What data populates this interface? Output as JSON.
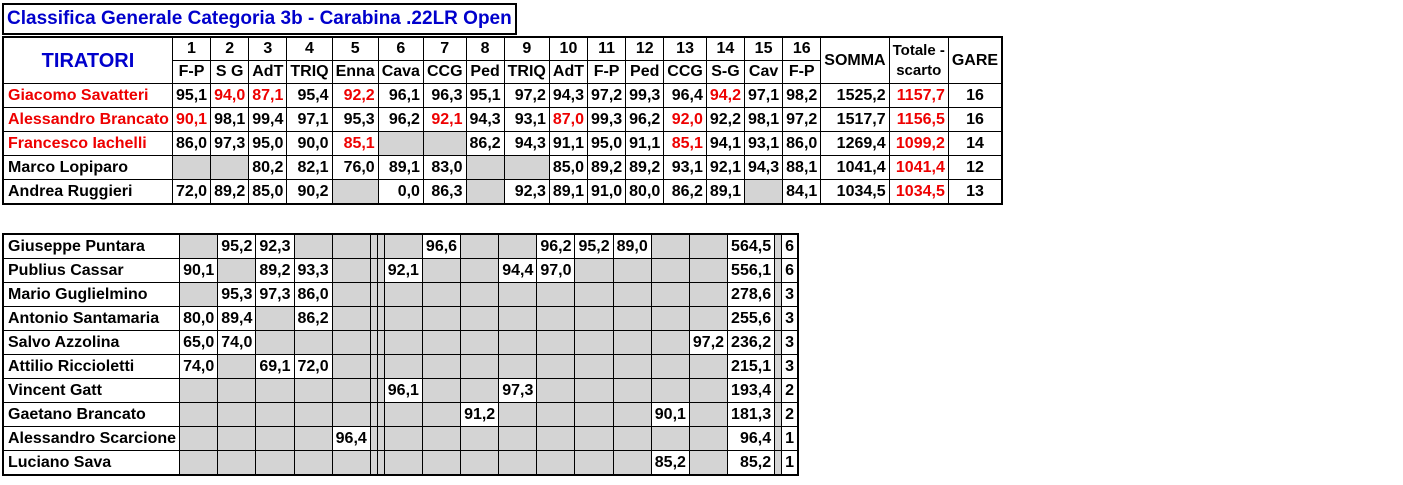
{
  "title": "Classifica Generale Categoria 3b - Carabina .22LR Open",
  "header": {
    "tiratori": "TIRATORI",
    "somma": "SOMMA",
    "totale_line1": "Totale -",
    "totale_line2": "scarto",
    "gare": "GARE",
    "numbers": [
      "1",
      "2",
      "3",
      "4",
      "5",
      "6",
      "7",
      "8",
      "9",
      "10",
      "11",
      "12",
      "13",
      "14",
      "15",
      "16"
    ],
    "codes": [
      "F-P",
      "S G",
      "AdT",
      "TRIQ",
      "Enna",
      "Cava",
      "CCG",
      "Ped",
      "TRIQ",
      "AdT",
      "F-P",
      "Ped",
      "CCG",
      "S-G",
      "Cav",
      "F-P"
    ]
  },
  "colors": {
    "title_blue": "#0000cc",
    "highlight_red": "#ee0000",
    "empty_grey": "#d4d4d4"
  },
  "top_rows": [
    {
      "name": "Giacomo Savatteri",
      "name_red": true,
      "scores": [
        "95,1",
        "94,0",
        "87,1",
        "95,4",
        "92,2",
        "96,1",
        "96,3",
        "95,1",
        "97,2",
        "94,3",
        "97,2",
        "99,3",
        "96,4",
        "94,2",
        "97,1",
        "98,2"
      ],
      "red": [
        false,
        true,
        true,
        false,
        true,
        false,
        false,
        false,
        false,
        false,
        false,
        false,
        false,
        true,
        false,
        false
      ],
      "somma": "1525,2",
      "totale": "1157,7",
      "gare": "16"
    },
    {
      "name": "Alessandro Brancato",
      "name_red": true,
      "scores": [
        "90,1",
        "98,1",
        "99,4",
        "97,1",
        "95,3",
        "96,2",
        "92,1",
        "94,3",
        "93,1",
        "87,0",
        "99,3",
        "96,2",
        "92,0",
        "92,2",
        "98,1",
        "97,2"
      ],
      "red": [
        true,
        false,
        false,
        false,
        false,
        false,
        true,
        false,
        false,
        true,
        false,
        false,
        true,
        false,
        false,
        false
      ],
      "somma": "1517,7",
      "totale": "1156,5",
      "gare": "16"
    },
    {
      "name": "Francesco Iachelli",
      "name_red": true,
      "scores": [
        "86,0",
        "97,3",
        "95,0",
        "90,0",
        "85,1",
        "",
        "",
        "86,2",
        "94,3",
        "91,1",
        "95,0",
        "91,1",
        "85,1",
        "94,1",
        "93,1",
        "86,0"
      ],
      "red": [
        false,
        false,
        false,
        false,
        true,
        false,
        false,
        false,
        false,
        false,
        false,
        false,
        true,
        false,
        false,
        false
      ],
      "somma": "1269,4",
      "totale": "1099,2",
      "gare": "14"
    },
    {
      "name": "Marco Lopiparo",
      "name_red": false,
      "scores": [
        "",
        "",
        "80,2",
        "82,1",
        "76,0",
        "89,1",
        "83,0",
        "",
        "",
        "85,0",
        "89,2",
        "89,2",
        "93,1",
        "92,1",
        "94,3",
        "88,1"
      ],
      "red": [
        false,
        false,
        false,
        false,
        false,
        false,
        false,
        false,
        false,
        false,
        false,
        false,
        false,
        false,
        false,
        false
      ],
      "somma": "1041,4",
      "totale": "1041,4",
      "gare": "12"
    },
    {
      "name": "Andrea Ruggieri",
      "name_red": false,
      "scores": [
        "72,0",
        "89,2",
        "85,0",
        "90,2",
        "",
        "0,0",
        "86,3",
        "",
        "92,3",
        "89,1",
        "91,0",
        "80,0",
        "86,2",
        "89,1",
        "",
        "84,1"
      ],
      "red": [
        false,
        false,
        false,
        false,
        false,
        false,
        false,
        false,
        false,
        false,
        false,
        false,
        false,
        false,
        false,
        false
      ],
      "somma": "1034,5",
      "totale": "1034,5",
      "gare": "13"
    }
  ],
  "other_rows": [
    {
      "name": "Giuseppe Puntara",
      "scores": [
        "",
        "95,2",
        "92,3",
        "",
        "",
        "",
        "",
        "",
        "96,6",
        "",
        "",
        "96,2",
        "95,2",
        "89,0",
        "",
        ""
      ],
      "somma": "564,5",
      "gare": "6"
    },
    {
      "name": "Publius Cassar",
      "scores": [
        "90,1",
        "",
        "89,2",
        "93,3",
        "",
        "",
        "",
        "92,1",
        "",
        "",
        "94,4",
        "97,0",
        "",
        "",
        "",
        ""
      ],
      "somma": "556,1",
      "gare": "6"
    },
    {
      "name": "Mario Guglielmino",
      "scores": [
        "",
        "95,3",
        "97,3",
        "86,0",
        "",
        "",
        "",
        "",
        "",
        "",
        "",
        "",
        "",
        "",
        "",
        ""
      ],
      "somma": "278,6",
      "gare": "3"
    },
    {
      "name": "Antonio Santamaria",
      "scores": [
        "80,0",
        "89,4",
        "",
        "86,2",
        "",
        "",
        "",
        "",
        "",
        "",
        "",
        "",
        "",
        "",
        "",
        ""
      ],
      "somma": "255,6",
      "gare": "3"
    },
    {
      "name": "Salvo Azzolina",
      "scores": [
        "65,0",
        "74,0",
        "",
        "",
        "",
        "",
        "",
        "",
        "",
        "",
        "",
        "",
        "",
        "",
        "",
        "97,2"
      ],
      "somma": "236,2",
      "gare": "3"
    },
    {
      "name": "Attilio Riccioletti",
      "scores": [
        "74,0",
        "",
        "69,1",
        "72,0",
        "",
        "",
        "",
        "",
        "",
        "",
        "",
        "",
        "",
        "",
        "",
        ""
      ],
      "somma": "215,1",
      "gare": "3"
    },
    {
      "name": "Vincent Gatt",
      "scores": [
        "",
        "",
        "",
        "",
        "",
        "",
        "",
        "96,1",
        "",
        "",
        "97,3",
        "",
        "",
        "",
        "",
        ""
      ],
      "somma": "193,4",
      "gare": "2"
    },
    {
      "name": "Gaetano Brancato",
      "scores": [
        "",
        "",
        "",
        "",
        "",
        "",
        "",
        "",
        "",
        "91,2",
        "",
        "",
        "",
        "",
        "90,1",
        ""
      ],
      "somma": "181,3",
      "gare": "2"
    },
    {
      "name": "Alessandro Scarcione",
      "scores": [
        "",
        "",
        "",
        "",
        "96,4",
        "",
        "",
        "",
        "",
        "",
        "",
        "",
        "",
        "",
        "",
        ""
      ],
      "somma": "96,4",
      "gare": "1"
    },
    {
      "name": "Luciano Sava",
      "scores": [
        "",
        "",
        "",
        "",
        "",
        "",
        "",
        "",
        "",
        "",
        "",
        "",
        "",
        "",
        "85,2",
        ""
      ],
      "somma": "85,2",
      "gare": "1"
    }
  ]
}
